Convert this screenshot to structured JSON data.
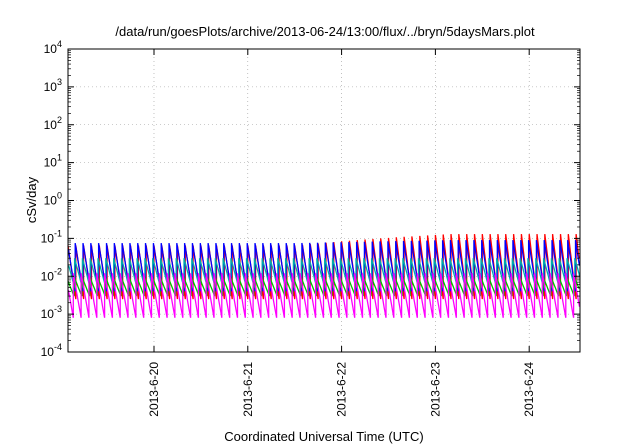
{
  "chart_data": {
    "type": "line",
    "title": "/data/run/goesPlots/archive/2013-06-24/13:00/flux/../bryn/5daysMars.plot",
    "xlabel": "Coordinated Universal Time (UTC)",
    "ylabel": "cSv/day",
    "yscale": "log",
    "ylim": [
      0.0001,
      10000
    ],
    "xlim": [
      "2013-06-19 02:00",
      "2013-06-24 13:00"
    ],
    "y_ticks": [
      {
        "base": "10",
        "exp": "-4"
      },
      {
        "base": "10",
        "exp": "-3"
      },
      {
        "base": "10",
        "exp": "-2"
      },
      {
        "base": "10",
        "exp": "-1"
      },
      {
        "base": "10",
        "exp": "0"
      },
      {
        "base": "10",
        "exp": "1"
      },
      {
        "base": "10",
        "exp": "2"
      },
      {
        "base": "10",
        "exp": "3"
      },
      {
        "base": "10",
        "exp": "4"
      }
    ],
    "x_ticks": [
      "2013-6-20",
      "2013-6-21",
      "2013-6-22",
      "2013-6-23",
      "2013-6-24"
    ],
    "x_tick_days_from_start": [
      0.9167,
      1.9167,
      2.9167,
      3.9167,
      4.9167
    ],
    "x_span_days": 5.4583,
    "grid": true,
    "legend": "none",
    "oscillation": {
      "period_hours": 2.0,
      "description": "sawtooth peaks decaying within each period"
    },
    "series": [
      {
        "color": "#ff0000",
        "peak_start": 0.065,
        "peak_end": 0.13,
        "trough": 0.0025
      },
      {
        "color": "#0000ff",
        "peak_start": 0.075,
        "peak_end": 0.09,
        "trough": 0.004
      },
      {
        "color": "#00aaaa",
        "peak_start": 0.03,
        "peak_end": 0.03,
        "trough": 0.005
      },
      {
        "color": "#00c000",
        "peak_start": 0.01,
        "peak_end": 0.01,
        "trough": 0.003
      },
      {
        "color": "#ff00ff",
        "peak_start": 0.012,
        "peak_end": 0.012,
        "trough": 0.0008
      }
    ]
  }
}
